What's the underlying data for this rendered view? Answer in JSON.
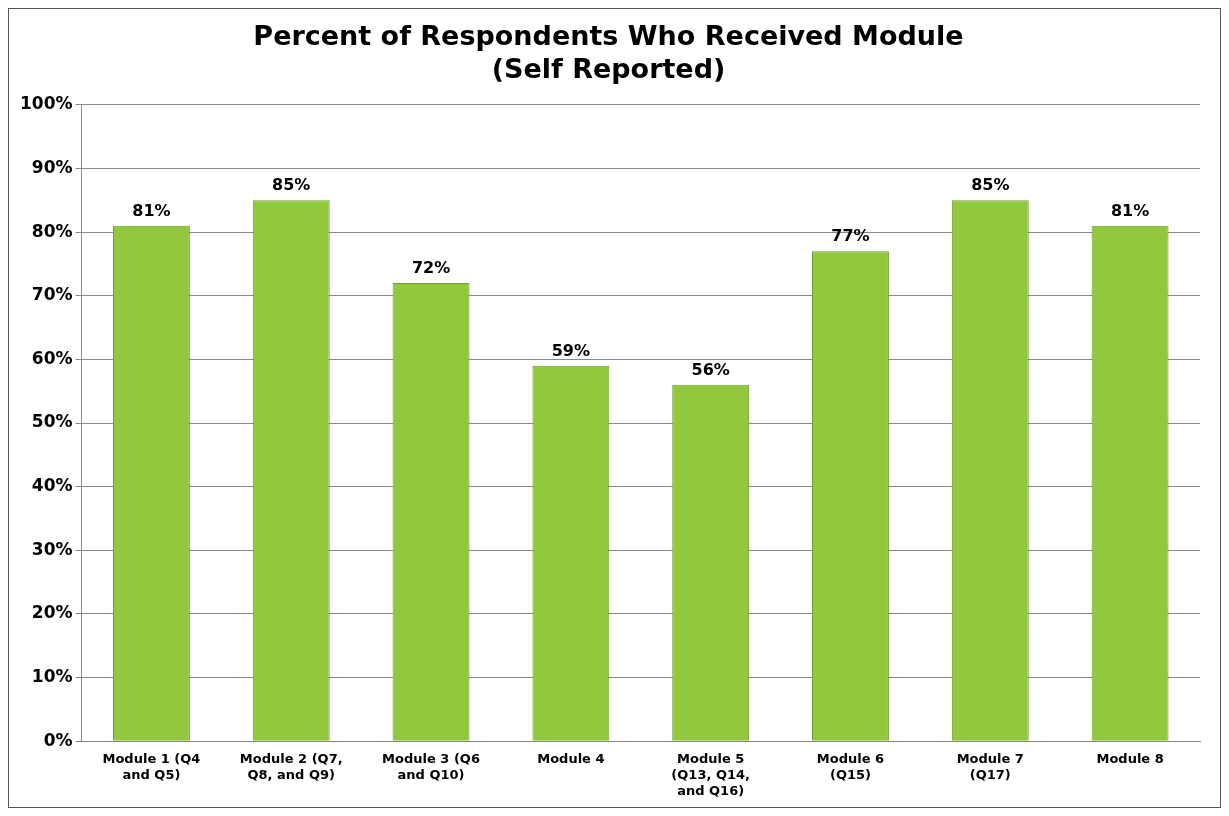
{
  "chart_data": {
    "type": "bar",
    "title": "Percent of Respondents Who Received Module (Self Reported)",
    "categories": [
      "Module 1 (Q4 and Q5)",
      "Module 2 (Q7, Q8, and Q9)",
      "Module 3 (Q6 and Q10)",
      "Module 4",
      "Module 5 (Q13, Q14, and Q16)",
      "Module 6 (Q15)",
      "Module 7 (Q17)",
      "Module 8"
    ],
    "values": [
      81,
      85,
      72,
      59,
      56,
      77,
      85,
      81
    ],
    "value_labels": [
      "81%",
      "85%",
      "72%",
      "59%",
      "56%",
      "77%",
      "85%",
      "81%"
    ],
    "color": "#92c83e",
    "ylim": [
      0,
      100
    ],
    "yticks": [
      {
        "value": 0,
        "label": "0%"
      },
      {
        "value": 10,
        "label": "10%"
      },
      {
        "value": 20,
        "label": "20%"
      },
      {
        "value": 30,
        "label": "30%"
      },
      {
        "value": 40,
        "label": "40%"
      },
      {
        "value": 50,
        "label": "50%"
      },
      {
        "value": 60,
        "label": "60%"
      },
      {
        "value": 70,
        "label": "70%"
      },
      {
        "value": 80,
        "label": "80%"
      },
      {
        "value": 90,
        "label": "90%"
      },
      {
        "value": 100,
        "label": "100%"
      }
    ],
    "grid": "y",
    "legend": false
  }
}
